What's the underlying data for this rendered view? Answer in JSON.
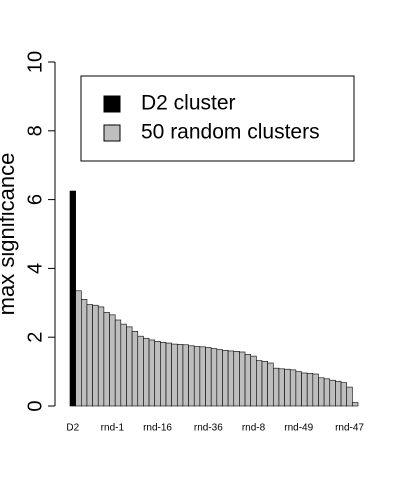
{
  "chart_data": {
    "type": "bar",
    "y_label": "max significance",
    "categories": [
      "D2",
      null,
      null,
      null,
      null,
      null,
      null,
      "rnd-1",
      null,
      null,
      null,
      null,
      null,
      null,
      null,
      "rnd-16",
      null,
      null,
      null,
      null,
      null,
      null,
      null,
      null,
      "rnd-36",
      null,
      null,
      null,
      null,
      null,
      null,
      null,
      "rnd-8",
      null,
      null,
      null,
      null,
      null,
      null,
      null,
      "rnd-49",
      null,
      null,
      null,
      null,
      null,
      null,
      null,
      null,
      "rnd-47",
      null
    ],
    "series": [
      {
        "name": "D2 cluster",
        "color": "#000000",
        "values": [
          6.25,
          null,
          null,
          null,
          null,
          null,
          null,
          null,
          null,
          null,
          null,
          null,
          null,
          null,
          null,
          null,
          null,
          null,
          null,
          null,
          null,
          null,
          null,
          null,
          null,
          null,
          null,
          null,
          null,
          null,
          null,
          null,
          null,
          null,
          null,
          null,
          null,
          null,
          null,
          null,
          null,
          null,
          null,
          null,
          null,
          null,
          null,
          null,
          null,
          null,
          null
        ]
      },
      {
        "name": "50 random clusters",
        "color": "#bebebe",
        "values": [
          null,
          3.35,
          3.1,
          2.95,
          2.93,
          2.88,
          2.72,
          2.65,
          2.5,
          2.38,
          2.3,
          2.17,
          2.03,
          1.97,
          1.92,
          1.88,
          1.85,
          1.83,
          1.8,
          1.79,
          1.78,
          1.75,
          1.73,
          1.72,
          1.7,
          1.67,
          1.64,
          1.62,
          1.6,
          1.59,
          1.57,
          1.5,
          1.45,
          1.32,
          1.3,
          1.25,
          1.1,
          1.08,
          1.07,
          1.05,
          1.0,
          0.96,
          0.95,
          0.93,
          0.82,
          0.79,
          0.75,
          0.72,
          0.68,
          0.55,
          0.1
        ]
      }
    ],
    "ylim": [
      0,
      10
    ],
    "yticks": [
      0,
      2,
      4,
      6,
      8,
      10
    ],
    "legend": "top-right"
  }
}
